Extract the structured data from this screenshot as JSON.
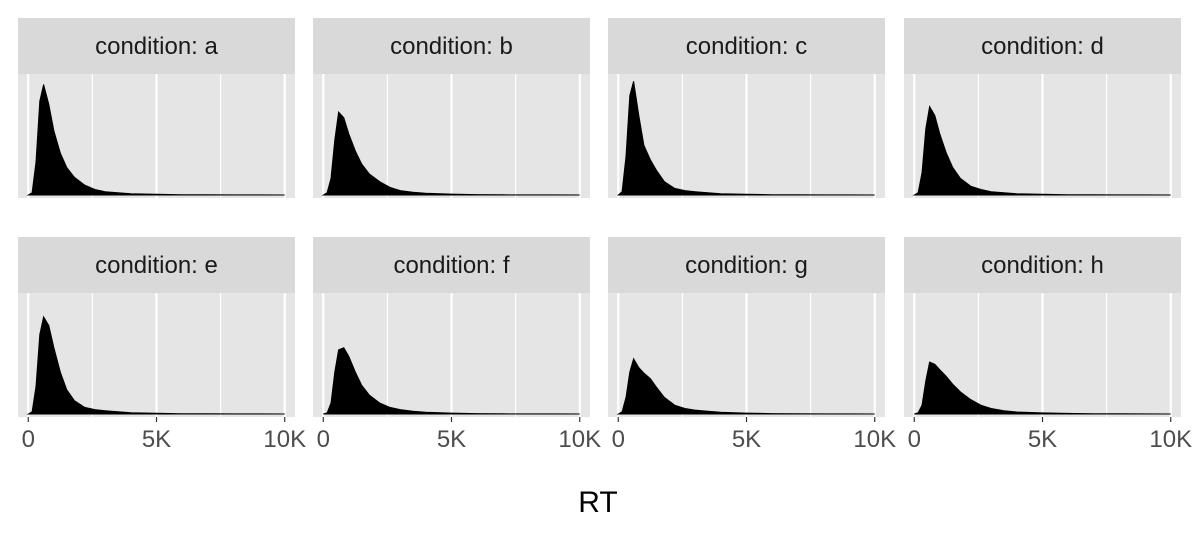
{
  "chart_data": {
    "type": "area",
    "subtype": "density-facets",
    "xlabel": "RT",
    "ylabel": "",
    "xlim": [
      -400,
      10400
    ],
    "x_ticks": [
      0,
      2500,
      5000,
      7500,
      10000
    ],
    "x_tick_labels": [
      "0",
      "",
      "5K",
      "",
      "10K"
    ],
    "y_axis_shown": false,
    "grid": true,
    "layout": {
      "rows": 2,
      "cols": 4
    },
    "colors": {
      "panel_bg": "#e5e5e5",
      "strip_bg": "#d9d9d9",
      "gridline": "#ffffff",
      "fill": "#000000"
    },
    "panels": [
      {
        "label": "condition: a",
        "x": [
          0,
          150,
          300,
          450,
          600,
          800,
          1000,
          1250,
          1500,
          1800,
          2200,
          2600,
          3000,
          3500,
          4000,
          5000,
          6000,
          7000,
          8000,
          9000,
          10000
        ],
        "y": [
          0,
          0.02,
          0.3,
          0.85,
          1.0,
          0.82,
          0.58,
          0.38,
          0.25,
          0.16,
          0.09,
          0.05,
          0.03,
          0.02,
          0.012,
          0.006,
          0.003,
          0.002,
          0.001,
          0.0005,
          0
        ]
      },
      {
        "label": "condition: b",
        "x": [
          0,
          150,
          300,
          450,
          600,
          800,
          1000,
          1250,
          1500,
          1800,
          2200,
          2600,
          3000,
          3500,
          4000,
          5000,
          6000,
          7000,
          8000,
          9000,
          10000
        ],
        "y": [
          0,
          0.02,
          0.15,
          0.5,
          0.75,
          0.7,
          0.55,
          0.4,
          0.28,
          0.19,
          0.12,
          0.07,
          0.04,
          0.025,
          0.015,
          0.008,
          0.004,
          0.002,
          0.001,
          0.0005,
          0
        ]
      },
      {
        "label": "condition: c",
        "x": [
          0,
          150,
          300,
          450,
          600,
          800,
          1000,
          1250,
          1500,
          1800,
          2200,
          2600,
          3000,
          3500,
          4000,
          5000,
          6000,
          7000,
          8000,
          9000,
          10000
        ],
        "y": [
          0,
          0.03,
          0.35,
          0.9,
          1.03,
          0.72,
          0.45,
          0.32,
          0.22,
          0.12,
          0.06,
          0.04,
          0.03,
          0.02,
          0.012,
          0.006,
          0.003,
          0.002,
          0.001,
          0.0005,
          0
        ]
      },
      {
        "label": "condition: d",
        "x": [
          0,
          150,
          300,
          450,
          600,
          800,
          1000,
          1250,
          1500,
          1800,
          2200,
          2600,
          3000,
          3500,
          4000,
          5000,
          6000,
          7000,
          8000,
          9000,
          10000
        ],
        "y": [
          0,
          0.02,
          0.2,
          0.6,
          0.8,
          0.72,
          0.55,
          0.38,
          0.25,
          0.15,
          0.08,
          0.05,
          0.03,
          0.02,
          0.012,
          0.006,
          0.003,
          0.002,
          0.001,
          0.0005,
          0
        ]
      },
      {
        "label": "condition: e",
        "x": [
          0,
          150,
          300,
          450,
          600,
          800,
          1000,
          1250,
          1500,
          1800,
          2200,
          2600,
          3000,
          3500,
          4000,
          5000,
          6000,
          7000,
          8000,
          9000,
          10000
        ],
        "y": [
          0,
          0.02,
          0.25,
          0.72,
          0.88,
          0.8,
          0.6,
          0.38,
          0.22,
          0.12,
          0.06,
          0.04,
          0.03,
          0.02,
          0.012,
          0.006,
          0.003,
          0.002,
          0.001,
          0.0005,
          0
        ]
      },
      {
        "label": "condition: f",
        "x": [
          0,
          150,
          300,
          450,
          600,
          800,
          1000,
          1250,
          1500,
          1800,
          2200,
          2600,
          3000,
          3500,
          4000,
          5000,
          6000,
          7000,
          8000,
          9000,
          10000
        ],
        "y": [
          0,
          0.01,
          0.1,
          0.38,
          0.58,
          0.6,
          0.52,
          0.38,
          0.26,
          0.17,
          0.1,
          0.06,
          0.04,
          0.025,
          0.015,
          0.008,
          0.004,
          0.002,
          0.001,
          0.0005,
          0
        ]
      },
      {
        "label": "condition: g",
        "x": [
          0,
          150,
          300,
          450,
          600,
          800,
          1000,
          1250,
          1500,
          1800,
          2200,
          2600,
          3000,
          3500,
          4000,
          5000,
          6000,
          7000,
          8000,
          9000,
          10000
        ],
        "y": [
          0,
          0.02,
          0.15,
          0.38,
          0.5,
          0.42,
          0.37,
          0.32,
          0.24,
          0.15,
          0.08,
          0.05,
          0.035,
          0.025,
          0.015,
          0.008,
          0.004,
          0.002,
          0.001,
          0.0005,
          0
        ]
      },
      {
        "label": "condition: h",
        "x": [
          0,
          150,
          300,
          450,
          600,
          800,
          1000,
          1250,
          1500,
          1800,
          2200,
          2600,
          3000,
          3500,
          4000,
          5000,
          6000,
          7000,
          8000,
          9000,
          10000
        ],
        "y": [
          0,
          0.01,
          0.08,
          0.3,
          0.47,
          0.45,
          0.4,
          0.34,
          0.27,
          0.2,
          0.13,
          0.08,
          0.05,
          0.03,
          0.018,
          0.01,
          0.005,
          0.003,
          0.0015,
          0.0007,
          0
        ]
      }
    ]
  }
}
